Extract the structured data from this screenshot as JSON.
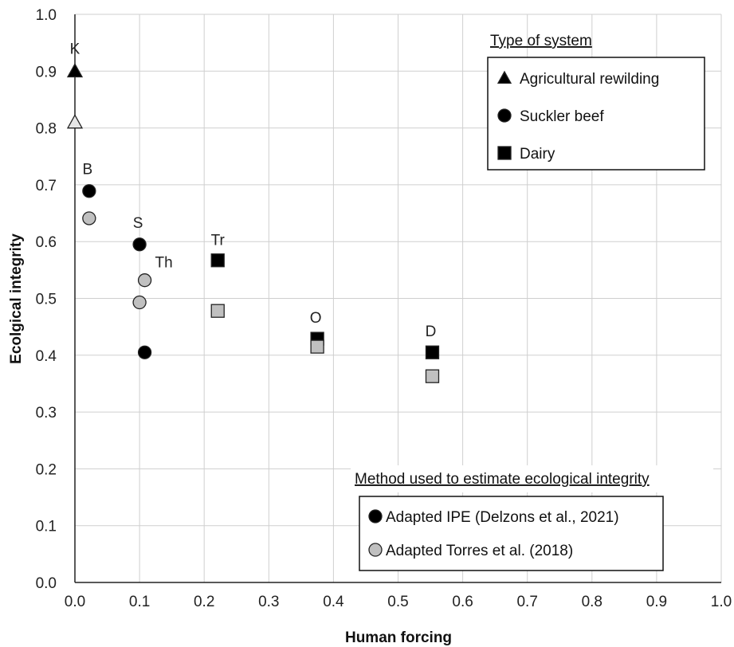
{
  "chart_data": {
    "type": "scatter",
    "title": "",
    "xlabel": "Human forcing",
    "ylabel": "Ecolgical integrity",
    "xlim": [
      0,
      1.0
    ],
    "ylim": [
      0,
      1.0
    ],
    "x_ticks": [
      "0.0",
      "0.1",
      "0.2",
      "0.3",
      "0.4",
      "0.5",
      "0.6",
      "0.7",
      "0.8",
      "0.9",
      "1.0"
    ],
    "y_ticks": [
      "0.0",
      "0.1",
      "0.2",
      "0.3",
      "0.4",
      "0.5",
      "0.6",
      "0.7",
      "0.8",
      "0.9",
      "1.0"
    ],
    "grid": true,
    "points": [
      {
        "label": "K",
        "system": "Agricultural rewilding",
        "method": "Adapted IPE (Delzons et al., 2021)",
        "x": 0.0,
        "y": 0.9
      },
      {
        "label": "",
        "system": "Agricultural rewilding",
        "method": "Adapted Torres et al. (2018)",
        "x": 0.0,
        "y": 0.81
      },
      {
        "label": "B",
        "system": "Suckler beef",
        "method": "Adapted IPE (Delzons et al., 2021)",
        "x": 0.022,
        "y": 0.689
      },
      {
        "label": "",
        "system": "Suckler beef",
        "method": "Adapted Torres et al. (2018)",
        "x": 0.022,
        "y": 0.641
      },
      {
        "label": "S",
        "system": "Suckler beef",
        "method": "Adapted IPE (Delzons et al., 2021)",
        "x": 0.1,
        "y": 0.595
      },
      {
        "label": "",
        "system": "Suckler beef",
        "method": "Adapted Torres et al. (2018)",
        "x": 0.1,
        "y": 0.493
      },
      {
        "label": "Th",
        "system": "Suckler beef",
        "method": "Adapted Torres et al. (2018)",
        "x": 0.108,
        "y": 0.532
      },
      {
        "label": "",
        "system": "Suckler beef",
        "method": "Adapted IPE (Delzons et al., 2021)",
        "x": 0.108,
        "y": 0.405
      },
      {
        "label": "Tr",
        "system": "Dairy",
        "method": "Adapted IPE (Delzons et al., 2021)",
        "x": 0.221,
        "y": 0.567
      },
      {
        "label": "",
        "system": "Dairy",
        "method": "Adapted Torres et al. (2018)",
        "x": 0.221,
        "y": 0.478
      },
      {
        "label": "O",
        "system": "Dairy",
        "method": "Adapted IPE (Delzons et al., 2021)",
        "x": 0.375,
        "y": 0.429
      },
      {
        "label": "",
        "system": "Dairy",
        "method": "Adapted Torres et al. (2018)",
        "x": 0.375,
        "y": 0.415
      },
      {
        "label": "D",
        "system": "Dairy",
        "method": "Adapted IPE (Delzons et al., 2021)",
        "x": 0.553,
        "y": 0.405
      },
      {
        "label": "",
        "system": "Dairy",
        "method": "Adapted Torres et al. (2018)",
        "x": 0.553,
        "y": 0.363
      }
    ],
    "legend_system": {
      "title": "Type of system",
      "placement": "top-right",
      "entries": [
        {
          "name": "Agricultural rewilding",
          "marker": "triangle"
        },
        {
          "name": "Suckler beef",
          "marker": "circle"
        },
        {
          "name": "Dairy",
          "marker": "square"
        }
      ]
    },
    "legend_method": {
      "title": "Method used to estimate ecological integrity",
      "placement": "bottom-right",
      "entries": [
        {
          "name": "Adapted IPE (Delzons et al., 2021)",
          "color": "#000000"
        },
        {
          "name": "Adapted Torres et al. (2018)",
          "color": "#c0c0c0"
        }
      ]
    }
  }
}
